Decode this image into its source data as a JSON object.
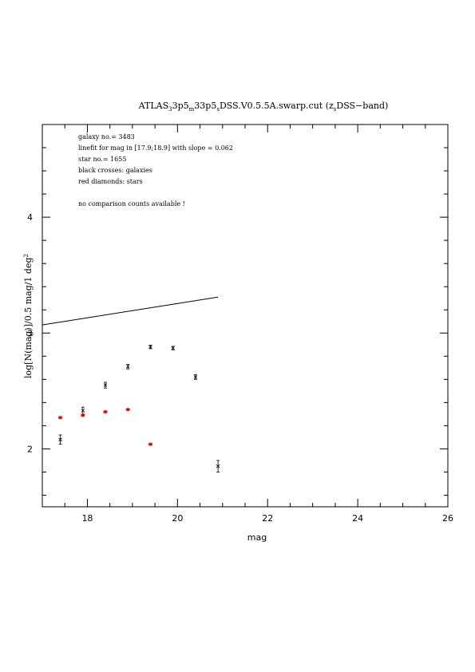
{
  "chart_data": {
    "type": "scatter",
    "title_parts": {
      "t1": "ATLAS",
      "s1": "3",
      "t2": "3p5",
      "s2": "m",
      "t3": "33p5",
      "s3": "s",
      "t4": "DSS.V0.5.5A.swarp.cut (z",
      "s4": "s",
      "t5": "DSS−band)"
    },
    "xlabel": "mag",
    "ylabel": {
      "main": "log[N(mag)]/0.5 mag/1 deg",
      "sup": "2"
    },
    "xlim": [
      17,
      26
    ],
    "ylim": [
      1.5,
      4.8
    ],
    "x_ticks": [
      18,
      20,
      22,
      24,
      26
    ],
    "y_ticks": [
      2,
      3,
      4
    ],
    "annotations": [
      "galaxy no.= 3483",
      "linefit for mag in [17.9;18.9] with slope = 0.062",
      "star no.= 1655",
      "black crosses: galaxies",
      "red diamonds: stars",
      "",
      "no comparison counts available !"
    ],
    "series": [
      {
        "label": "black crosses: galaxies",
        "color": "#000000",
        "marker": "cross",
        "points": [
          {
            "x": 17.4,
            "y": 2.08,
            "err": 0.04
          },
          {
            "x": 17.9,
            "y": 2.33,
            "err": 0.03
          },
          {
            "x": 18.4,
            "y": 2.55,
            "err": 0.025
          },
          {
            "x": 18.9,
            "y": 2.71,
            "err": 0.02
          },
          {
            "x": 19.4,
            "y": 2.88,
            "err": 0.015
          },
          {
            "x": 19.9,
            "y": 2.87,
            "err": 0.015
          },
          {
            "x": 20.4,
            "y": 2.62,
            "err": 0.02
          },
          {
            "x": 20.9,
            "y": 1.85,
            "err": 0.05
          }
        ]
      },
      {
        "label": "red diamonds: stars",
        "color": "#ff0000",
        "marker": "diamond",
        "points": [
          {
            "x": 17.4,
            "y": 2.27
          },
          {
            "x": 17.9,
            "y": 2.29
          },
          {
            "x": 18.4,
            "y": 2.32
          },
          {
            "x": 18.9,
            "y": 2.34
          },
          {
            "x": 19.4,
            "y": 2.04
          }
        ]
      }
    ],
    "fit_line": {
      "x": [
        17.0,
        20.9
      ],
      "y": [
        3.07,
        3.31
      ]
    }
  }
}
